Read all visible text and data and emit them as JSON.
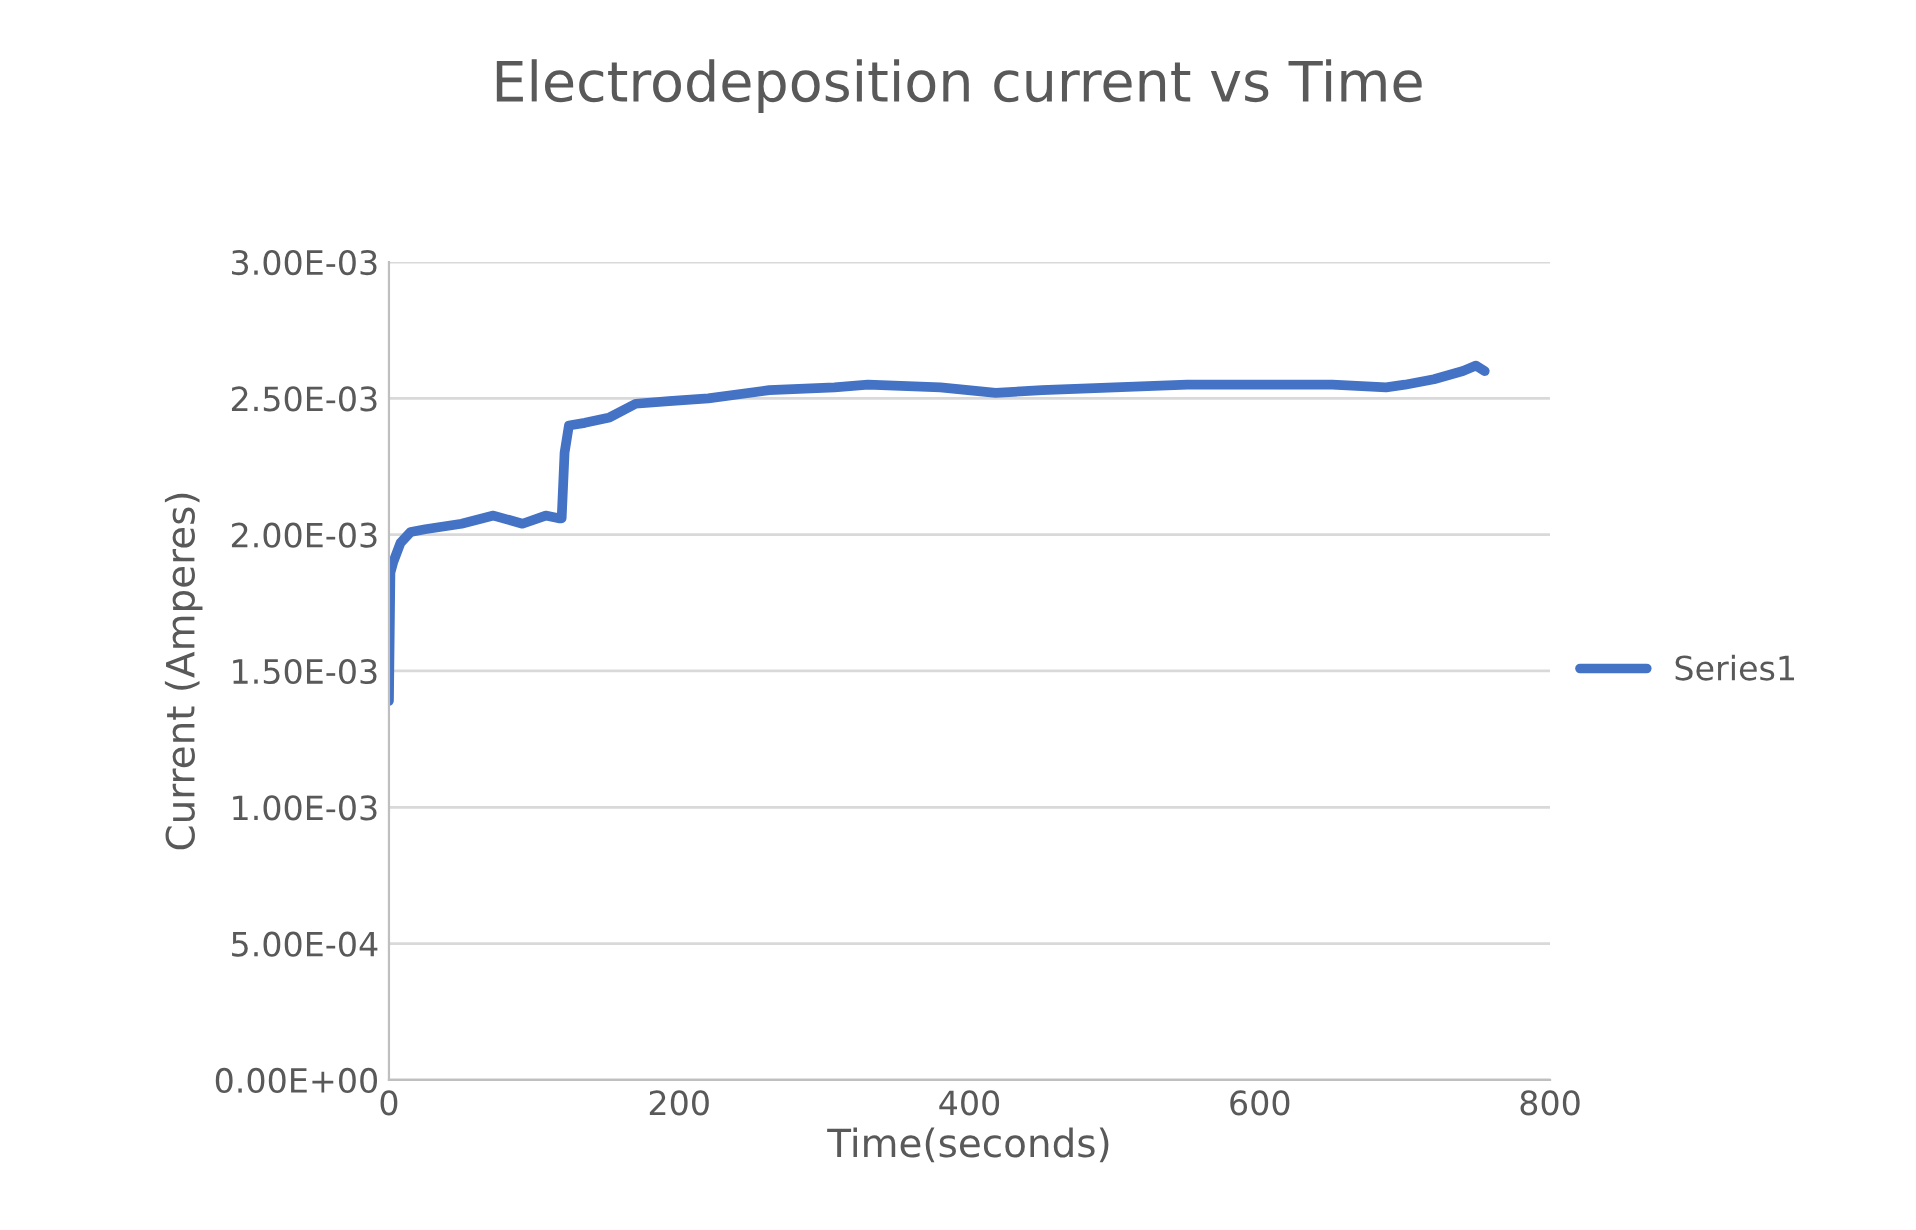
{
  "chart_data": {
    "type": "line",
    "title": "Electrodeposition current vs Time",
    "xlabel": "Time(seconds)",
    "ylabel": "Current (Amperes)",
    "x": [
      0,
      1,
      3,
      8,
      15,
      25,
      50,
      72,
      92,
      108,
      117,
      119,
      121,
      124,
      135,
      152,
      170,
      193,
      220,
      262,
      307,
      330,
      380,
      418,
      450,
      500,
      550,
      600,
      650,
      687,
      700,
      720,
      740,
      749,
      755
    ],
    "series": [
      {
        "name": "Series1",
        "color": "#4472c4",
        "values": [
          0.00139,
          0.00186,
          0.0019,
          0.00197,
          0.00201,
          0.00202,
          0.00204,
          0.00207,
          0.00204,
          0.00207,
          0.00206,
          0.00206,
          0.0023,
          0.0024,
          0.00241,
          0.00243,
          0.00248,
          0.00249,
          0.0025,
          0.00253,
          0.00254,
          0.00255,
          0.00254,
          0.00252,
          0.00253,
          0.00254,
          0.00255,
          0.00255,
          0.00255,
          0.00254,
          0.00255,
          0.00257,
          0.0026,
          0.00262,
          0.0026
        ]
      }
    ],
    "xlim": [
      0,
      800
    ],
    "xticks": [
      0,
      200,
      400,
      600,
      800
    ],
    "ylim": [
      0,
      0.003
    ],
    "yticks": [
      {
        "value": 0,
        "label": "0.00E+00"
      },
      {
        "value": 0.0005,
        "label": "5.00E-04"
      },
      {
        "value": 0.001,
        "label": "1.00E-03"
      },
      {
        "value": 0.0015,
        "label": "1.50E-03"
      },
      {
        "value": 0.002,
        "label": "2.00E-03"
      },
      {
        "value": 0.0025,
        "label": "2.50E-03"
      },
      {
        "value": 0.003,
        "label": "3.00E-03"
      }
    ],
    "grid": "y",
    "legend": "right",
    "marker": "none",
    "line_style": "solid"
  }
}
